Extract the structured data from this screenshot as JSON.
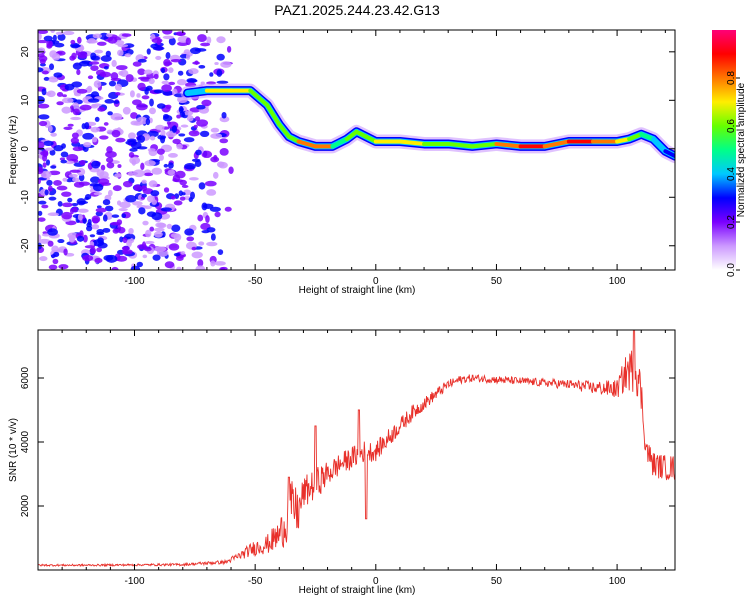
{
  "title": "PAZ1.2025.244.23.42.G13",
  "chart_data": [
    {
      "type": "heatmap",
      "name": "spectrogram",
      "xlabel": "Height of straight line (km)",
      "ylabel": "Frequency (Hz)",
      "xlim": [
        -140,
        124
      ],
      "ylim": [
        -25,
        24.5
      ],
      "xticks": [
        -100,
        -50,
        0,
        50,
        100
      ],
      "xtick_labels": [
        "-100",
        "-50",
        "0",
        "50",
        "100"
      ],
      "yticks": [
        -20,
        -10,
        0,
        10,
        20
      ],
      "ytick_labels": [
        "-20",
        "-10",
        "0",
        "10",
        "20"
      ],
      "noise_region_x": [
        -140,
        -58
      ],
      "noise_amplitude": [
        0.05,
        0.35
      ],
      "ridge": {
        "x": [
          -78,
          -70,
          -60,
          -52,
          -45,
          -40,
          -36,
          -32,
          -25,
          -18,
          -12,
          -8,
          -4,
          0,
          10,
          20,
          30,
          40,
          50,
          60,
          70,
          80,
          90,
          100,
          105,
          110,
          115,
          120,
          124
        ],
        "freq": [
          11.5,
          12,
          12,
          12,
          9,
          5,
          2.5,
          1.5,
          0.5,
          0.5,
          2,
          3.5,
          2.5,
          1.5,
          1.5,
          1,
          1,
          0.5,
          1,
          0.5,
          0.5,
          1.5,
          1.5,
          1.5,
          2,
          3,
          2,
          -0.5,
          -1.5
        ],
        "amplitude": [
          0.3,
          0.55,
          0.8,
          0.65,
          0.45,
          0.7,
          0.55,
          0.6,
          0.95,
          0.55,
          0.5,
          0.6,
          0.55,
          0.6,
          0.8,
          0.6,
          0.65,
          0.55,
          0.6,
          0.95,
          0.75,
          0.9,
          0.85,
          0.8,
          0.6,
          0.5,
          0.45,
          0.3,
          0.2
        ]
      }
    },
    {
      "type": "line",
      "name": "snr",
      "xlabel": "Height of straight line (km)",
      "ylabel": "SNR (10 * v/v)",
      "xlim": [
        -140,
        124
      ],
      "ylim": [
        0,
        7500
      ],
      "xticks": [
        -100,
        -50,
        0,
        50,
        100
      ],
      "xtick_labels": [
        "-100",
        "-50",
        "0",
        "50",
        "100"
      ],
      "yticks": [
        2000,
        4000,
        6000
      ],
      "ytick_labels": [
        "2000",
        "4000",
        "6000"
      ],
      "color": "#e8302a",
      "series": [
        {
          "name": "SNR",
          "x": [
            -140,
            -120,
            -100,
            -80,
            -62,
            -55,
            -50,
            -45,
            -40,
            -37,
            -35,
            -32,
            -30,
            -25,
            -20,
            -15,
            -10,
            -5,
            0,
            5,
            10,
            15,
            20,
            25,
            30,
            35,
            40,
            50,
            60,
            70,
            80,
            90,
            100,
            104,
            108,
            110,
            112,
            115,
            120,
            124
          ],
          "values": [
            150,
            150,
            160,
            170,
            250,
            500,
            700,
            800,
            1100,
            1500,
            2000,
            1800,
            2400,
            2700,
            3000,
            3300,
            3500,
            3700,
            3700,
            4100,
            4500,
            4900,
            5200,
            5500,
            5800,
            5950,
            6000,
            5950,
            5900,
            5850,
            5800,
            5700,
            5650,
            6200,
            6300,
            5500,
            3800,
            3300,
            3200,
            3200
          ],
          "noise_amplitude": [
            30,
            30,
            30,
            40,
            60,
            150,
            250,
            300,
            500,
            700,
            800,
            700,
            500,
            500,
            400,
            350,
            350,
            350,
            300,
            300,
            250,
            250,
            200,
            180,
            150,
            130,
            120,
            120,
            120,
            130,
            150,
            200,
            300,
            600,
            800,
            600,
            400,
            400,
            400,
            400
          ]
        }
      ],
      "spikes": [
        {
          "x": -36,
          "value": 2900
        },
        {
          "x": -25,
          "value": 4500
        },
        {
          "x": -7,
          "value": 5000
        },
        {
          "x": -4,
          "value": 1600
        },
        {
          "x": 107,
          "value": 7500
        }
      ]
    },
    {
      "type": "colorbar",
      "name": "colorbar",
      "label": "Normalized spectral amplitude",
      "range": [
        0,
        1
      ],
      "ticks": [
        0.0,
        0.2,
        0.4,
        0.6,
        0.8
      ],
      "tick_labels": [
        "0.0",
        "0.2",
        "0.4",
        "0.6",
        "0.8"
      ],
      "colors": [
        "#ffffff",
        "#cc99ff",
        "#7a00ff",
        "#0000ff",
        "#00c8ff",
        "#00ff88",
        "#66ff00",
        "#ffee00",
        "#ff7700",
        "#ff0000",
        "#ff0077"
      ]
    }
  ]
}
